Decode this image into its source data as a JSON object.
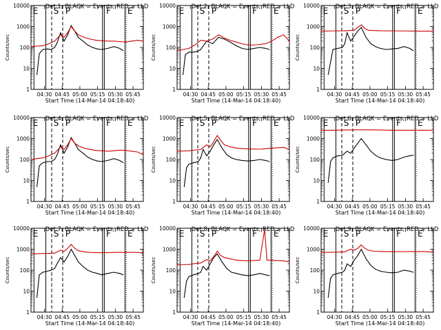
{
  "figure": {
    "xtick_labels": [
      "04:30",
      "04:45",
      "05:00",
      "05:15",
      "05:30",
      "05:45"
    ],
    "ytick_labels": [
      "1",
      "10",
      "100",
      "1000",
      "10000"
    ],
    "xlabel": "Start Time (14-Mar-14 04:18:40)",
    "ylabel": "Counts/sec",
    "event_letters": [
      "S",
      "P",
      "F",
      "E"
    ]
  },
  "chart_data": [
    {
      "type": "line",
      "title": "Det 1: BLACK = Events, RED = LLD",
      "xlabel": "Start Time (14-Mar-14 04:18:40)",
      "ylabel": "Counts/sec",
      "x_unit": "minutes after 04:18:40",
      "xlim": [
        0,
        95
      ],
      "ylim": [
        1,
        10000
      ],
      "y_scale": "log",
      "series": [
        {
          "name": "Events",
          "color": "#000000",
          "x": [
            0,
            5,
            7,
            10,
            14,
            17,
            20,
            22,
            25,
            28,
            31,
            34,
            37,
            40,
            44,
            48,
            52,
            56,
            60,
            65,
            70,
            75,
            78
          ],
          "y": [
            null,
            5,
            50,
            80,
            85,
            80,
            100,
            160,
            500,
            200,
            400,
            1100,
            600,
            300,
            200,
            130,
            100,
            85,
            80,
            90,
            110,
            90,
            70
          ]
        },
        {
          "name": "LLD",
          "color": "#cc0000",
          "x": [
            0,
            5,
            10,
            15,
            20,
            25,
            28,
            31,
            34,
            37,
            40,
            45,
            50,
            55,
            60,
            65,
            70,
            75,
            80,
            85,
            90,
            95
          ],
          "y": [
            110,
            115,
            120,
            150,
            200,
            400,
            300,
            500,
            1000,
            600,
            400,
            300,
            250,
            220,
            210,
            200,
            200,
            190,
            180,
            200,
            220,
            200
          ]
        }
      ]
    },
    {
      "type": "line",
      "title": "Det 2: BLACK = Events, RED = LLD",
      "xlabel": "Start Time (14-Mar-14 04:18:40)",
      "ylabel": "Counts/sec",
      "x_unit": "minutes after 04:18:40",
      "xlim": [
        0,
        95
      ],
      "ylim": [
        1,
        10000
      ],
      "y_scale": "log",
      "series": [
        {
          "name": "Events",
          "color": "#000000",
          "x": [
            0,
            5,
            7,
            10,
            14,
            17,
            20,
            25,
            30,
            35,
            40,
            45,
            50,
            55,
            60,
            65,
            70,
            75,
            78
          ],
          "y": [
            null,
            5,
            45,
            60,
            60,
            65,
            80,
            200,
            150,
            300,
            250,
            180,
            120,
            90,
            80,
            90,
            100,
            90,
            80
          ]
        },
        {
          "name": "LLD",
          "color": "#cc0000",
          "x": [
            0,
            5,
            10,
            15,
            20,
            25,
            30,
            35,
            40,
            45,
            50,
            55,
            60,
            65,
            70,
            75,
            80,
            85,
            90,
            95
          ],
          "y": [
            70,
            80,
            90,
            130,
            220,
            200,
            250,
            400,
            280,
            220,
            180,
            150,
            130,
            130,
            140,
            150,
            200,
            300,
            400,
            200
          ]
        }
      ]
    },
    {
      "type": "line",
      "title": "Det 3: BLACK = Events, RED = LLD",
      "xlabel": "Start Time (14-Mar-14 04:18:40)",
      "ylabel": "Counts/sec",
      "x_unit": "minutes after 04:18:40",
      "xlim": [
        0,
        95
      ],
      "ylim": [
        1,
        10000
      ],
      "y_scale": "log",
      "series": [
        {
          "name": "Events",
          "color": "#000000",
          "x": [
            0,
            6,
            8,
            10,
            14,
            18,
            20,
            22,
            25,
            28,
            31,
            34,
            38,
            42,
            46,
            50,
            55,
            60,
            65,
            70,
            75,
            78
          ],
          "y": [
            null,
            5,
            20,
            80,
            90,
            100,
            150,
            500,
            200,
            350,
            600,
            900,
            300,
            150,
            110,
            90,
            80,
            85,
            90,
            110,
            90,
            70
          ]
        },
        {
          "name": "LLD",
          "color": "#cc0000",
          "x": [
            0,
            10,
            20,
            28,
            31,
            34,
            37,
            40,
            50,
            60,
            70,
            80,
            90,
            95
          ],
          "y": [
            600,
            610,
            620,
            650,
            900,
            1200,
            800,
            650,
            620,
            610,
            610,
            600,
            600,
            600
          ]
        }
      ]
    },
    {
      "type": "line",
      "title": "Det 4: BLACK = Events, RED = LLD",
      "xlabel": "Start Time (14-Mar-14 04:18:40)",
      "ylabel": "Counts/sec",
      "x_unit": "minutes after 04:18:40",
      "xlim": [
        0,
        95
      ],
      "ylim": [
        1,
        10000
      ],
      "y_scale": "log",
      "series": [
        {
          "name": "Events",
          "color": "#000000",
          "x": [
            0,
            5,
            7,
            10,
            14,
            17,
            20,
            22,
            25,
            28,
            31,
            34,
            37,
            40,
            44,
            48,
            52,
            56,
            60,
            65,
            70,
            75,
            78
          ],
          "y": [
            null,
            5,
            50,
            70,
            80,
            80,
            100,
            160,
            500,
            200,
            400,
            1100,
            600,
            300,
            200,
            130,
            100,
            85,
            80,
            90,
            110,
            90,
            70
          ]
        },
        {
          "name": "LLD",
          "color": "#cc0000",
          "x": [
            0,
            5,
            10,
            15,
            20,
            25,
            28,
            31,
            34,
            37,
            40,
            45,
            50,
            55,
            60,
            65,
            70,
            75,
            80,
            85,
            90,
            95
          ],
          "y": [
            100,
            110,
            120,
            150,
            200,
            400,
            300,
            500,
            1000,
            600,
            450,
            350,
            300,
            270,
            260,
            250,
            260,
            280,
            270,
            250,
            230,
            170
          ]
        }
      ]
    },
    {
      "type": "line",
      "title": "Det 5: BLACK = Events, RED = LLD",
      "xlabel": "Start Time (14-Mar-14 04:18:40)",
      "ylabel": "Counts/sec",
      "x_unit": "minutes after 04:18:40",
      "xlim": [
        0,
        95
      ],
      "ylim": [
        1,
        10000
      ],
      "y_scale": "log",
      "series": [
        {
          "name": "Events",
          "color": "#000000",
          "x": [
            0,
            6,
            8,
            10,
            14,
            18,
            20,
            22,
            25,
            28,
            31,
            34,
            38,
            42,
            46,
            50,
            55,
            60,
            65,
            70,
            75,
            78
          ],
          "y": [
            null,
            5,
            40,
            60,
            70,
            80,
            120,
            300,
            150,
            250,
            500,
            900,
            350,
            170,
            120,
            100,
            90,
            85,
            90,
            100,
            90,
            80
          ]
        },
        {
          "name": "LLD",
          "color": "#cc0000",
          "x": [
            0,
            10,
            20,
            25,
            28,
            31,
            34,
            37,
            40,
            45,
            50,
            60,
            70,
            80,
            90,
            95
          ],
          "y": [
            250,
            260,
            300,
            500,
            400,
            700,
            1400,
            800,
            500,
            400,
            350,
            320,
            310,
            350,
            380,
            300
          ]
        }
      ]
    },
    {
      "type": "line",
      "title": "Det 6: BLACK = Events, RED = LLD",
      "xlabel": "Start Time (14-Mar-14 04:18:40)",
      "ylabel": "Counts/sec",
      "x_unit": "minutes after 04:18:40",
      "xlim": [
        0,
        95
      ],
      "ylim": [
        1,
        10000
      ],
      "y_scale": "log",
      "series": [
        {
          "name": "Events",
          "color": "#000000",
          "x": [
            0,
            6,
            8,
            10,
            14,
            18,
            22,
            25,
            28,
            31,
            34,
            38,
            42,
            46,
            50,
            55,
            60,
            65,
            70,
            75,
            78
          ],
          "y": [
            null,
            8,
            80,
            120,
            150,
            160,
            250,
            200,
            350,
            600,
            1000,
            500,
            250,
            160,
            120,
            100,
            90,
            100,
            130,
            150,
            160
          ]
        },
        {
          "name": "LLD",
          "color": "#cc0000",
          "x": [
            0,
            10,
            20,
            30,
            40,
            50,
            60,
            70,
            80,
            90,
            95
          ],
          "y": [
            2500,
            2500,
            2550,
            2600,
            2600,
            2550,
            2500,
            2500,
            2500,
            2500,
            2500
          ]
        }
      ]
    },
    {
      "type": "line",
      "title": "Det 7: BLACK = Events, RED = LLD",
      "xlabel": "Start Time (14-Mar-14 04:18:40)",
      "ylabel": "Counts/sec",
      "x_unit": "minutes after 04:18:40",
      "xlim": [
        0,
        95
      ],
      "ylim": [
        1,
        10000
      ],
      "y_scale": "log",
      "series": [
        {
          "name": "Events",
          "color": "#000000",
          "x": [
            0,
            5,
            7,
            10,
            14,
            17,
            20,
            22,
            25,
            28,
            31,
            34,
            37,
            40,
            44,
            48,
            52,
            56,
            60,
            65,
            70,
            75,
            78
          ],
          "y": [
            null,
            5,
            60,
            80,
            90,
            100,
            120,
            200,
            400,
            250,
            450,
            1000,
            500,
            250,
            150,
            100,
            80,
            70,
            60,
            70,
            80,
            70,
            60
          ]
        },
        {
          "name": "LLD",
          "color": "#cc0000",
          "x": [
            0,
            10,
            20,
            25,
            28,
            31,
            34,
            37,
            40,
            45,
            50,
            60,
            70,
            80,
            90,
            95
          ],
          "y": [
            600,
            620,
            650,
            900,
            800,
            1100,
            1700,
            1100,
            850,
            750,
            700,
            680,
            700,
            720,
            700,
            650
          ]
        }
      ]
    },
    {
      "type": "line",
      "title": "Det 8: BLACK = Events, RED = LLD",
      "xlabel": "Start Time (14-Mar-14 04:18:40)",
      "ylabel": "Counts/sec",
      "x_unit": "minutes after 04:18:40",
      "xlim": [
        0,
        95
      ],
      "ylim": [
        1,
        10000
      ],
      "y_scale": "log",
      "series": [
        {
          "name": "Events",
          "color": "#000000",
          "x": [
            0,
            6,
            8,
            10,
            14,
            18,
            20,
            22,
            25,
            28,
            31,
            34,
            38,
            42,
            46,
            50,
            55,
            60,
            65,
            70,
            75,
            78
          ],
          "y": [
            null,
            5,
            30,
            50,
            60,
            70,
            80,
            150,
            100,
            200,
            400,
            600,
            250,
            120,
            80,
            70,
            60,
            55,
            60,
            70,
            60,
            55
          ]
        },
        {
          "name": "LLD",
          "color": "#cc0000",
          "x": [
            0,
            10,
            20,
            25,
            28,
            31,
            34,
            37,
            40,
            45,
            50,
            60,
            70,
            74,
            76,
            80,
            90,
            95
          ],
          "y": [
            180,
            190,
            220,
            320,
            280,
            450,
            800,
            500,
            400,
            350,
            300,
            280,
            300,
            9000,
            300,
            300,
            280,
            250
          ]
        }
      ]
    },
    {
      "type": "line",
      "title": "Det 9: BLACK = Events, RED = LLD",
      "xlabel": "Start Time (14-Mar-14 04:18:40)",
      "ylabel": "Counts/sec",
      "x_unit": "minutes after 04:18:40",
      "xlim": [
        0,
        95
      ],
      "ylim": [
        1,
        10000
      ],
      "y_scale": "log",
      "series": [
        {
          "name": "Events",
          "color": "#000000",
          "x": [
            0,
            6,
            8,
            10,
            14,
            18,
            20,
            22,
            25,
            28,
            31,
            34,
            38,
            42,
            46,
            50,
            55,
            60,
            65,
            70,
            75,
            78
          ],
          "y": [
            null,
            5,
            40,
            60,
            70,
            80,
            100,
            200,
            150,
            300,
            500,
            1000,
            350,
            170,
            110,
            90,
            80,
            75,
            80,
            100,
            90,
            80
          ]
        },
        {
          "name": "LLD",
          "color": "#cc0000",
          "x": [
            0,
            10,
            20,
            25,
            28,
            31,
            34,
            37,
            40,
            45,
            50,
            60,
            70,
            80,
            90,
            95
          ],
          "y": [
            700,
            720,
            750,
            1000,
            900,
            1100,
            1600,
            1100,
            900,
            800,
            780,
            760,
            770,
            780,
            760,
            720
          ]
        }
      ]
    }
  ]
}
